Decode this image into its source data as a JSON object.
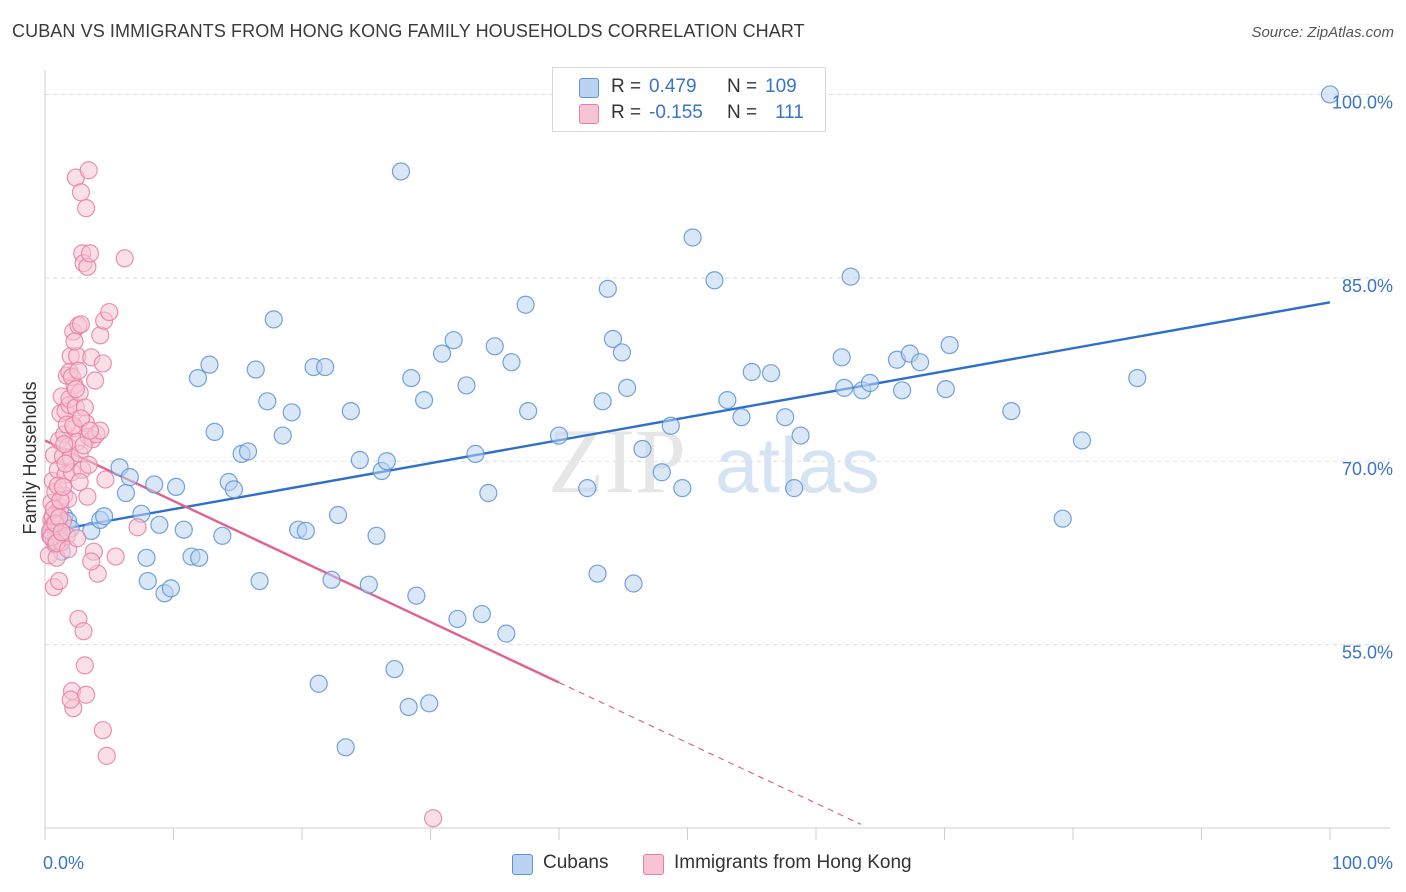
{
  "title": "CUBAN VS IMMIGRANTS FROM HONG KONG FAMILY HOUSEHOLDS CORRELATION CHART",
  "source": "Source: ZipAtlas.com",
  "watermark": {
    "zip": "ZIP",
    "atlas": "atlas"
  },
  "colors": {
    "blue_fill": "#b9d3f1",
    "blue_stroke": "#5b93d8",
    "blue_line": "#2f6fcc",
    "pink_fill": "#f6c4d4",
    "pink_stroke": "#e87ea3",
    "pink_line": "#e0628f",
    "axis_text": "#3a74c6",
    "grid": "#dcdcdc"
  },
  "legend": {
    "rows": [
      {
        "r_label": "R =",
        "r_value": "0.479",
        "n_label": "N =",
        "n_value": "109",
        "color": "#b9d3f1",
        "stroke": "#5b93d8"
      },
      {
        "r_label": "R =",
        "r_value": "-0.155",
        "n_label": "N =",
        "n_value": "111",
        "color": "#f6c4d4",
        "stroke": "#e87ea3"
      }
    ]
  },
  "bottom_legend": [
    {
      "label": "Cubans",
      "color": "#b9d3f1",
      "stroke": "#5b93d8"
    },
    {
      "label": "Immigrants from Hong Kong",
      "color": "#f6c4d4",
      "stroke": "#e87ea3"
    }
  ],
  "chart_data": {
    "type": "scatter",
    "title": "CUBAN VS IMMIGRANTS FROM HONG KONG FAMILY HOUSEHOLDS CORRELATION CHART",
    "xlabel": "",
    "ylabel": "Family Households",
    "xlim": [
      0,
      100
    ],
    "ylim": [
      40,
      102
    ],
    "x_tick_labels": [
      {
        "value": 0,
        "label": "0.0%"
      },
      {
        "value": 100,
        "label": "100.0%"
      }
    ],
    "y_tick_labels": [
      {
        "value": 55,
        "label": "55.0%"
      },
      {
        "value": 70,
        "label": "70.0%"
      },
      {
        "value": 85,
        "label": "85.0%"
      },
      {
        "value": 100,
        "label": "100.0%"
      }
    ],
    "x_minor_ticks": [
      0,
      10,
      20,
      30,
      40,
      50,
      60,
      70,
      80,
      90,
      100
    ],
    "grid": true,
    "series": [
      {
        "name": "Cubans",
        "color": "#b9d3f1",
        "points": [
          [
            0.5,
            64.3
          ],
          [
            0.7,
            63.5
          ],
          [
            0.9,
            65.0
          ],
          [
            1.1,
            64.0
          ],
          [
            1.3,
            62.6
          ],
          [
            1.5,
            65.5
          ],
          [
            1.2,
            63.6
          ],
          [
            1.8,
            65.1
          ],
          [
            2.0,
            64.5
          ],
          [
            3.6,
            64.3
          ],
          [
            4.3,
            65.2
          ],
          [
            4.6,
            65.5
          ],
          [
            5.8,
            69.5
          ],
          [
            6.3,
            67.4
          ],
          [
            6.6,
            68.7
          ],
          [
            7.5,
            65.7
          ],
          [
            7.9,
            62.1
          ],
          [
            8.0,
            60.2
          ],
          [
            8.5,
            68.1
          ],
          [
            8.9,
            64.8
          ],
          [
            9.3,
            59.2
          ],
          [
            9.8,
            59.6
          ],
          [
            10.2,
            67.9
          ],
          [
            10.8,
            64.4
          ],
          [
            11.4,
            62.2
          ],
          [
            11.9,
            76.8
          ],
          [
            12.0,
            62.1
          ],
          [
            12.8,
            77.9
          ],
          [
            13.2,
            72.4
          ],
          [
            13.8,
            63.9
          ],
          [
            14.3,
            68.3
          ],
          [
            14.7,
            67.7
          ],
          [
            15.3,
            70.6
          ],
          [
            15.8,
            70.8
          ],
          [
            16.4,
            77.5
          ],
          [
            16.7,
            60.2
          ],
          [
            17.3,
            74.9
          ],
          [
            17.8,
            81.6
          ],
          [
            18.5,
            72.1
          ],
          [
            19.2,
            74.0
          ],
          [
            19.7,
            64.4
          ],
          [
            20.3,
            64.3
          ],
          [
            20.9,
            77.7
          ],
          [
            21.3,
            51.8
          ],
          [
            21.8,
            77.7
          ],
          [
            22.3,
            60.3
          ],
          [
            22.8,
            65.6
          ],
          [
            23.4,
            46.6
          ],
          [
            23.8,
            74.1
          ],
          [
            24.5,
            70.1
          ],
          [
            25.2,
            59.9
          ],
          [
            25.8,
            63.9
          ],
          [
            26.2,
            69.2
          ],
          [
            26.6,
            70.0
          ],
          [
            27.2,
            53.0
          ],
          [
            27.7,
            93.7
          ],
          [
            28.3,
            49.9
          ],
          [
            28.5,
            76.8
          ],
          [
            28.9,
            59.0
          ],
          [
            29.5,
            75.0
          ],
          [
            29.9,
            50.2
          ],
          [
            30.9,
            78.8
          ],
          [
            31.8,
            79.9
          ],
          [
            32.1,
            57.1
          ],
          [
            32.8,
            76.2
          ],
          [
            33.5,
            70.6
          ],
          [
            34.0,
            57.5
          ],
          [
            34.5,
            67.4
          ],
          [
            35.0,
            79.4
          ],
          [
            35.9,
            55.9
          ],
          [
            36.3,
            78.1
          ],
          [
            37.4,
            82.8
          ],
          [
            37.6,
            74.1
          ],
          [
            40.0,
            72.1
          ],
          [
            42.2,
            67.8
          ],
          [
            43.0,
            60.8
          ],
          [
            43.4,
            74.9
          ],
          [
            43.8,
            84.1
          ],
          [
            44.2,
            80.0
          ],
          [
            44.9,
            78.9
          ],
          [
            45.3,
            76.0
          ],
          [
            45.8,
            60.0
          ],
          [
            46.5,
            71.0
          ],
          [
            48.0,
            69.1
          ],
          [
            48.7,
            72.9
          ],
          [
            49.6,
            67.8
          ],
          [
            50.4,
            88.3
          ],
          [
            52.1,
            84.8
          ],
          [
            53.1,
            75.0
          ],
          [
            54.2,
            73.6
          ],
          [
            55.0,
            77.3
          ],
          [
            56.5,
            77.2
          ],
          [
            57.6,
            73.6
          ],
          [
            58.3,
            67.8
          ],
          [
            58.8,
            72.1
          ],
          [
            62.0,
            78.5
          ],
          [
            62.2,
            76.0
          ],
          [
            62.7,
            85.1
          ],
          [
            63.6,
            75.8
          ],
          [
            64.2,
            76.4
          ],
          [
            66.3,
            78.3
          ],
          [
            66.7,
            75.8
          ],
          [
            67.3,
            78.8
          ],
          [
            68.1,
            78.1
          ],
          [
            70.1,
            75.9
          ],
          [
            70.4,
            79.5
          ],
          [
            75.2,
            74.1
          ],
          [
            79.2,
            65.3
          ],
          [
            80.7,
            71.7
          ],
          [
            85.0,
            76.8
          ],
          [
            100.0,
            100.0
          ]
        ]
      },
      {
        "name": "Immigrants from Hong Kong",
        "color": "#f6c4d4",
        "points": [
          [
            0.3,
            62.3
          ],
          [
            0.4,
            63.9
          ],
          [
            0.5,
            65.2
          ],
          [
            0.5,
            66.6
          ],
          [
            0.6,
            68.4
          ],
          [
            0.6,
            64.8
          ],
          [
            0.7,
            70.5
          ],
          [
            0.7,
            59.7
          ],
          [
            0.8,
            63.2
          ],
          [
            0.8,
            67.5
          ],
          [
            0.9,
            65.8
          ],
          [
            0.9,
            62.1
          ],
          [
            1.0,
            69.3
          ],
          [
            1.0,
            64.7
          ],
          [
            1.1,
            71.7
          ],
          [
            1.1,
            60.2
          ],
          [
            1.2,
            73.9
          ],
          [
            1.2,
            66.2
          ],
          [
            1.3,
            75.3
          ],
          [
            1.3,
            63.4
          ],
          [
            1.4,
            70.4
          ],
          [
            1.4,
            65.1
          ],
          [
            1.5,
            67.2
          ],
          [
            1.5,
            72.2
          ],
          [
            1.6,
            74.1
          ],
          [
            1.6,
            68.9
          ],
          [
            1.7,
            77.0
          ],
          [
            1.7,
            63.9
          ],
          [
            1.8,
            71.2
          ],
          [
            1.8,
            66.9
          ],
          [
            1.9,
            74.6
          ],
          [
            1.9,
            75.1
          ],
          [
            2.0,
            78.6
          ],
          [
            2.0,
            70.3
          ],
          [
            2.1,
            51.2
          ],
          [
            2.1,
            69.1
          ],
          [
            2.2,
            80.6
          ],
          [
            2.2,
            49.8
          ],
          [
            2.3,
            76.2
          ],
          [
            2.3,
            72.7
          ],
          [
            2.4,
            93.2
          ],
          [
            2.4,
            74.4
          ],
          [
            2.5,
            78.6
          ],
          [
            2.5,
            71.6
          ],
          [
            2.6,
            57.1
          ],
          [
            2.6,
            81.1
          ],
          [
            2.7,
            75.6
          ],
          [
            2.7,
            70.6
          ],
          [
            2.8,
            92.0
          ],
          [
            2.8,
            81.2
          ],
          [
            2.9,
            87.0
          ],
          [
            2.9,
            69.3
          ],
          [
            3.0,
            56.1
          ],
          [
            3.0,
            86.2
          ],
          [
            3.1,
            74.4
          ],
          [
            3.1,
            53.3
          ],
          [
            3.2,
            90.7
          ],
          [
            3.2,
            73.1
          ],
          [
            3.3,
            85.9
          ],
          [
            3.3,
            67.1
          ],
          [
            3.4,
            69.7
          ],
          [
            3.4,
            72.0
          ],
          [
            3.5,
            87.0
          ],
          [
            3.6,
            78.5
          ],
          [
            3.7,
            71.8
          ],
          [
            3.8,
            62.6
          ],
          [
            3.9,
            76.6
          ],
          [
            4.0,
            72.2
          ],
          [
            4.1,
            60.8
          ],
          [
            4.3,
            80.3
          ],
          [
            4.3,
            72.5
          ],
          [
            4.5,
            78.0
          ],
          [
            4.5,
            48.0
          ],
          [
            4.6,
            81.5
          ],
          [
            4.7,
            68.5
          ],
          [
            4.8,
            45.9
          ],
          [
            5.0,
            82.2
          ],
          [
            5.5,
            62.2
          ],
          [
            6.2,
            86.6
          ],
          [
            7.2,
            64.6
          ],
          [
            30.2,
            40.8
          ],
          [
            0.4,
            64.3
          ],
          [
            0.5,
            63.8
          ],
          [
            0.6,
            65.5
          ],
          [
            0.7,
            66.1
          ],
          [
            0.8,
            64.9
          ],
          [
            0.9,
            63.3
          ],
          [
            1.0,
            68.0
          ],
          [
            1.1,
            65.4
          ],
          [
            1.2,
            66.8
          ],
          [
            1.3,
            64.2
          ],
          [
            1.4,
            67.9
          ],
          [
            1.5,
            71.4
          ],
          [
            1.6,
            69.8
          ],
          [
            1.7,
            73.0
          ],
          [
            1.8,
            62.8
          ],
          [
            1.9,
            77.3
          ],
          [
            2.0,
            50.5
          ],
          [
            2.1,
            76.9
          ],
          [
            2.2,
            72.9
          ],
          [
            2.3,
            79.8
          ],
          [
            2.4,
            75.9
          ],
          [
            2.5,
            63.7
          ],
          [
            2.6,
            77.4
          ],
          [
            2.7,
            68.3
          ],
          [
            2.8,
            73.5
          ],
          [
            3.0,
            71.3
          ],
          [
            3.2,
            50.9
          ],
          [
            3.4,
            93.8
          ],
          [
            3.5,
            72.5
          ],
          [
            3.6,
            61.8
          ]
        ]
      }
    ],
    "trend_lines": [
      {
        "series": "Cubans",
        "x": [
          0,
          100
        ],
        "y": [
          64.2,
          83.0
        ],
        "style": "solid"
      },
      {
        "series": "Immigrants from Hong Kong",
        "x": [
          0,
          40
        ],
        "y": [
          71.7,
          51.9
        ],
        "style": "solid"
      },
      {
        "series": "Immigrants from Hong Kong",
        "x": [
          40,
          63.5
        ],
        "y": [
          51.9,
          40.3
        ],
        "style": "dashed"
      }
    ]
  }
}
